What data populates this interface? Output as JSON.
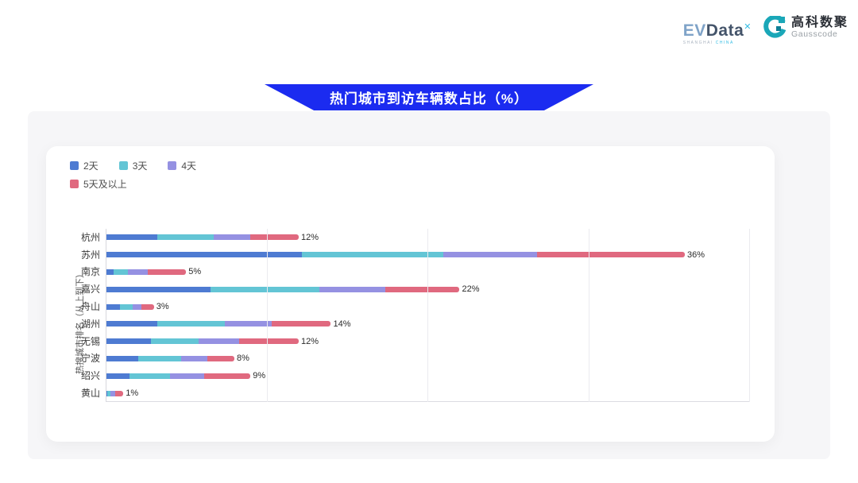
{
  "header": {
    "evdata": {
      "ev": "EV",
      "data": "Data",
      "sup": "✕",
      "sub_left": "SHANGHAI ",
      "sub_right": "CHINA"
    },
    "gausscode": {
      "cn": "高科数聚",
      "en": "Gausscode",
      "mark_color": "#1aa7b8"
    }
  },
  "banner": {
    "title": "热门城市到访车辆数占比（%）",
    "color": "#1b2bf0"
  },
  "chart_data": {
    "type": "bar",
    "orientation": "horizontal",
    "stacked": true,
    "title": "热门城市到访车辆数占比（%）",
    "ylabel": "热搜城市排名（从上到下）",
    "xlabel": "",
    "xlim": [
      0,
      40
    ],
    "gridlines": [
      0,
      10,
      20,
      30,
      40
    ],
    "grid": "vertical-only",
    "legend_position": "top-left",
    "categories": [
      "杭州",
      "苏州",
      "南京",
      "嘉兴",
      "舟山",
      "湖州",
      "无锡",
      "宁波",
      "绍兴",
      "黄山"
    ],
    "series": [
      {
        "name": "2天",
        "color": "#4e7bd2",
        "values": [
          3.2,
          12.2,
          0.5,
          6.5,
          0.9,
          3.2,
          2.8,
          2.0,
          1.5,
          0.1
        ]
      },
      {
        "name": "3天",
        "color": "#63c5d5",
        "values": [
          3.5,
          8.8,
          0.9,
          6.8,
          0.8,
          4.2,
          3.0,
          2.7,
          2.5,
          0.2
        ]
      },
      {
        "name": "4天",
        "color": "#9591e2",
        "values": [
          2.3,
          5.8,
          1.2,
          4.1,
          0.5,
          2.9,
          2.5,
          1.6,
          2.1,
          0.3
        ]
      },
      {
        "name": "5天及以上",
        "color": "#e0697f",
        "values": [
          3.0,
          9.2,
          2.4,
          4.6,
          0.8,
          3.7,
          3.7,
          1.7,
          2.9,
          0.5
        ]
      }
    ],
    "total_labels": [
      "12%",
      "36%",
      "5%",
      "22%",
      "3%",
      "14%",
      "12%",
      "8%",
      "9%",
      "1%"
    ]
  }
}
